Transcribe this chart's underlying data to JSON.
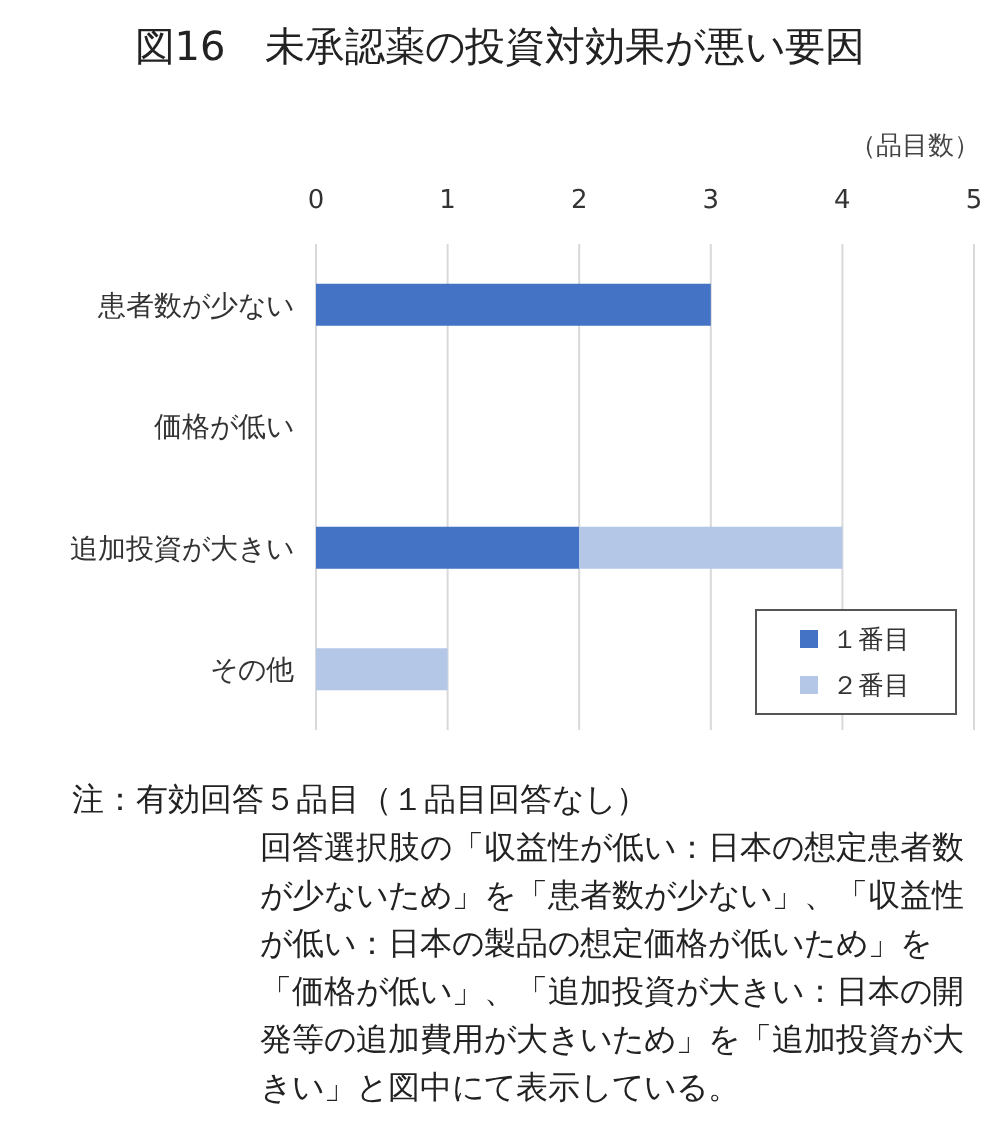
{
  "chart_data": {
    "type": "bar",
    "orientation": "horizontal",
    "stacked": true,
    "title": "図16　未承認薬の投資対効果が悪い要因",
    "xlabel": "（品目数）",
    "categories": [
      "患者数が少ない",
      "価格が低い",
      "追加投資が大きい",
      "その他"
    ],
    "series": [
      {
        "name": "１番目",
        "color": "#4472c4",
        "values": [
          3,
          0,
          2,
          0
        ]
      },
      {
        "name": "２番目",
        "color": "#b4c7e7",
        "values": [
          0,
          0,
          2,
          1
        ]
      }
    ],
    "xlim": [
      0,
      5
    ],
    "xticks": [
      0,
      1,
      2,
      3,
      4,
      5
    ],
    "grid": "x",
    "legend": "bottom right",
    "annotations": [
      "注：有効回答５品目（１品目回答なし）",
      "回答選択肢の「収益性が低い：日本の想定患者数が少ないため」を「患者数が少ない」、「収益性が低い：日本の製品の想定価格が低いため」を「価格が低い」、「追加投資が大きい：日本の開発等の追加費用が大きいため」を「追加投資が大きい」と図中にて表示している。"
    ]
  }
}
